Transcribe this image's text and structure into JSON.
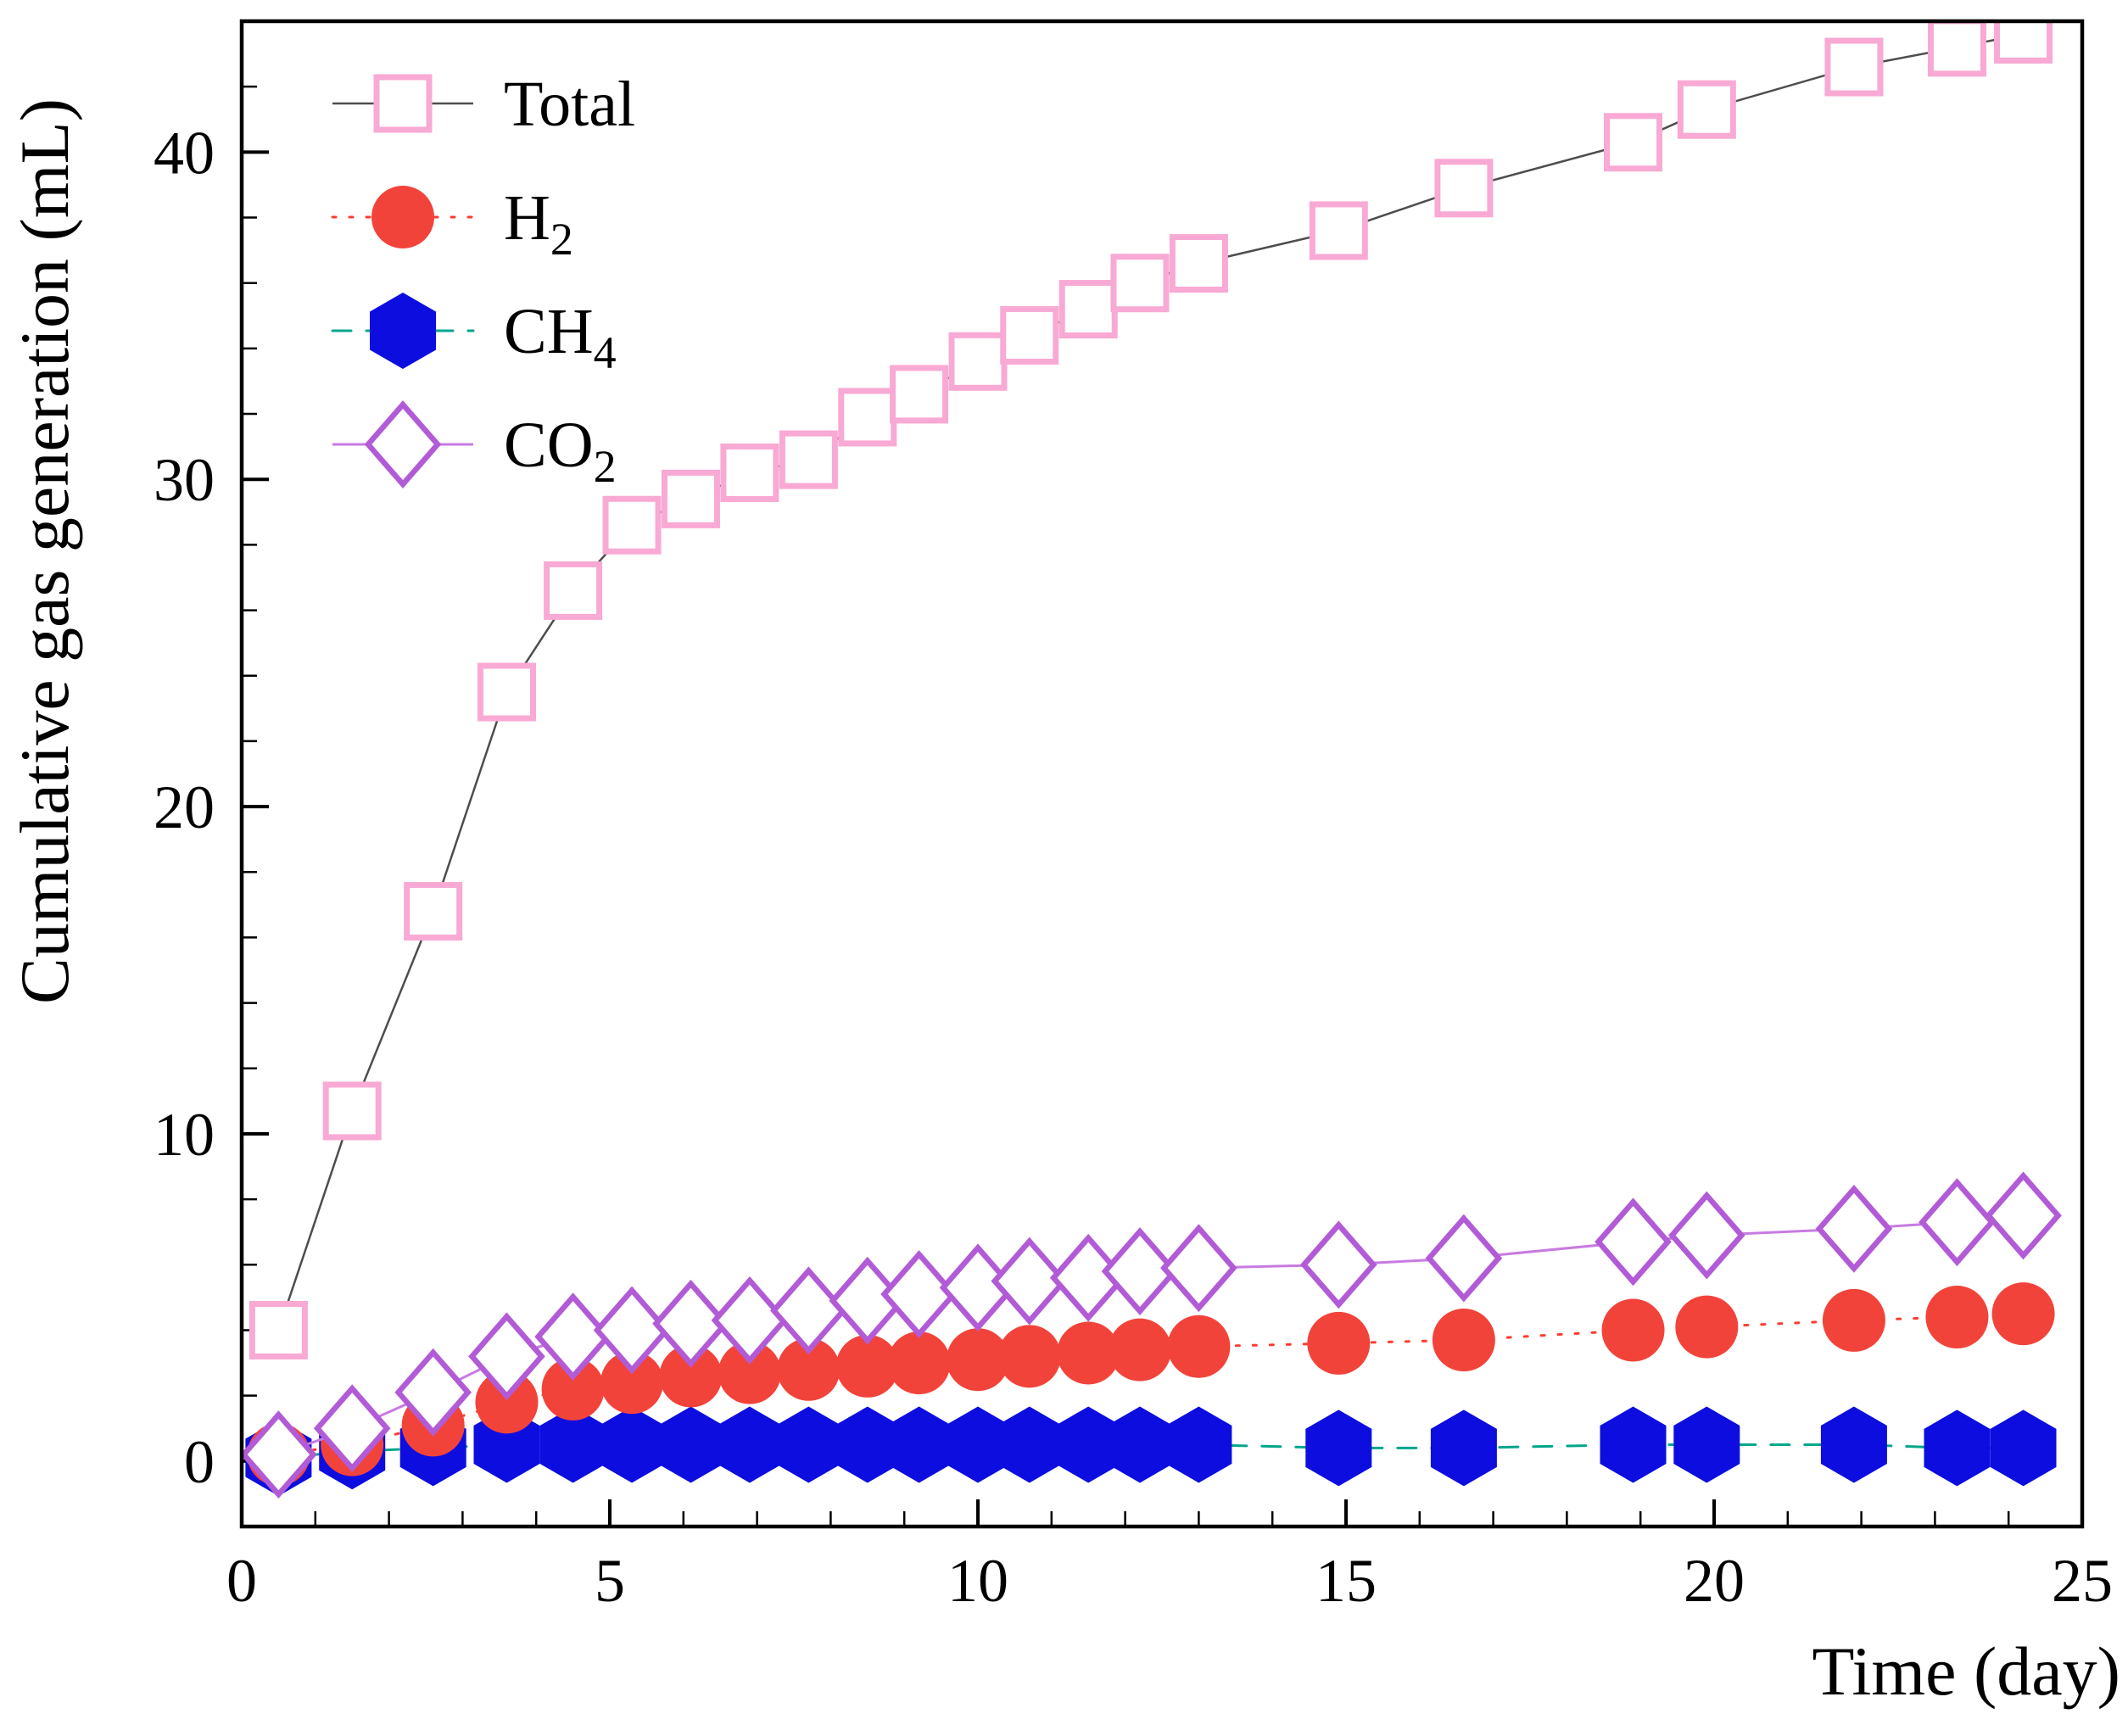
{
  "figure": {
    "xlabel": "Time (day)",
    "ylabel": "Cumulative gas generation (mL)"
  },
  "legend": {
    "items": [
      {
        "series": "total",
        "main": "Total",
        "sub": ""
      },
      {
        "series": "h2",
        "main": "H",
        "sub": "2"
      },
      {
        "series": "ch4",
        "main": "CH",
        "sub": "4"
      },
      {
        "series": "co2",
        "main": "CO",
        "sub": "2"
      }
    ]
  },
  "chart_data": {
    "type": "line",
    "title": "",
    "xlabel": "Time (day)",
    "ylabel": "Cumulative gas generation (mL)",
    "xlim": [
      0,
      25
    ],
    "ylim": [
      -2,
      44
    ],
    "xticks": [
      0,
      5,
      10,
      15,
      20,
      25
    ],
    "yticks": [
      0,
      10,
      20,
      30,
      40
    ],
    "xminor": 1,
    "yminor": 2,
    "grid": false,
    "legend_position": "top-left-inside",
    "x": [
      0.5,
      1.5,
      2.6,
      3.6,
      4.5,
      5.3,
      6.1,
      6.9,
      7.7,
      8.5,
      9.2,
      10.0,
      10.7,
      11.5,
      12.2,
      13.0,
      14.9,
      16.6,
      18.9,
      19.9,
      21.9,
      23.3,
      24.2
    ],
    "series": [
      {
        "id": "total",
        "name": "Total",
        "marker": "square-open",
        "color": "#f8a9d4",
        "line_color": "#4d4d4d",
        "line_style": "solid",
        "line_width": 2.5,
        "values": [
          4.0,
          10.7,
          16.8,
          23.5,
          26.6,
          28.6,
          29.4,
          30.2,
          30.6,
          31.9,
          32.6,
          33.6,
          34.4,
          35.2,
          36.0,
          36.6,
          37.6,
          38.9,
          40.3,
          41.3,
          42.6,
          43.2,
          43.6
        ]
      },
      {
        "id": "ch4",
        "name": "CH4",
        "marker": "hexagon",
        "color": "#0d0de0",
        "line_color": "#00a68c",
        "line_style": "dashed",
        "line_width": 3,
        "values": [
          0.1,
          0.3,
          0.4,
          0.5,
          0.5,
          0.5,
          0.5,
          0.5,
          0.5,
          0.5,
          0.5,
          0.5,
          0.5,
          0.5,
          0.5,
          0.5,
          0.4,
          0.4,
          0.5,
          0.5,
          0.5,
          0.4,
          0.4
        ]
      },
      {
        "id": "h2",
        "name": "H2",
        "marker": "circle",
        "color": "#f2433b",
        "line_color": "#ff3b30",
        "line_style": "dotted",
        "line_width": 3,
        "values": [
          0.2,
          0.5,
          1.1,
          1.8,
          2.2,
          2.4,
          2.6,
          2.7,
          2.8,
          2.9,
          3.0,
          3.1,
          3.2,
          3.3,
          3.4,
          3.5,
          3.6,
          3.7,
          4.0,
          4.1,
          4.3,
          4.4,
          4.5
        ]
      },
      {
        "id": "co2",
        "name": "CO2",
        "marker": "diamond-open",
        "color": "#b25bd6",
        "line_color": "#c77be0",
        "line_style": "solid",
        "line_width": 3,
        "values": [
          0.2,
          1.0,
          2.1,
          3.2,
          3.8,
          4.0,
          4.2,
          4.3,
          4.6,
          4.9,
          5.1,
          5.3,
          5.5,
          5.6,
          5.8,
          5.9,
          6.0,
          6.2,
          6.7,
          6.9,
          7.1,
          7.3,
          7.5
        ]
      }
    ]
  }
}
